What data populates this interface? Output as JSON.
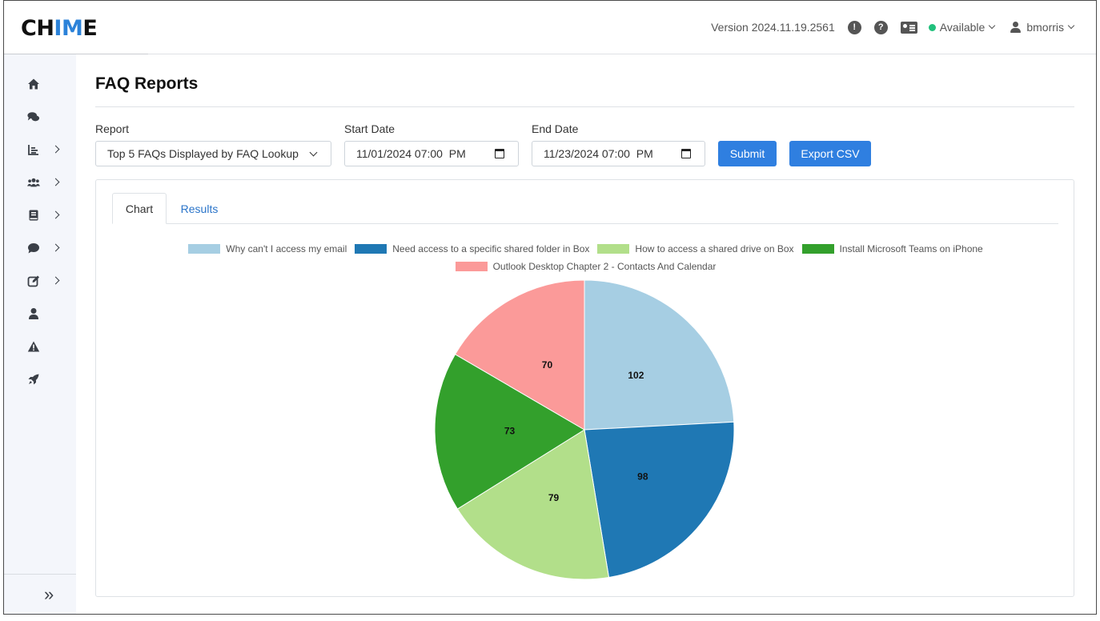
{
  "header": {
    "logo_prefix": "CH",
    "logo_accent": "IM",
    "logo_suffix": "E",
    "version": "Version 2024.11.19.2561",
    "status": "Available",
    "username": "bmorris"
  },
  "sidebar": {
    "items": [
      {
        "icon": "home-icon",
        "has_submenu": false
      },
      {
        "icon": "chat-icon",
        "has_submenu": false
      },
      {
        "icon": "reports-icon",
        "has_submenu": true
      },
      {
        "icon": "users-icon",
        "has_submenu": true
      },
      {
        "icon": "book-icon",
        "has_submenu": true
      },
      {
        "icon": "comment-icon",
        "has_submenu": true
      },
      {
        "icon": "edit-icon",
        "has_submenu": true
      },
      {
        "icon": "user-icon",
        "has_submenu": false
      },
      {
        "icon": "warning-icon",
        "has_submenu": false
      },
      {
        "icon": "rocket-icon",
        "has_submenu": false
      }
    ]
  },
  "page": {
    "title": "FAQ Reports",
    "report_label": "Report",
    "report_value": "Top 5 FAQs Displayed by FAQ Lookup",
    "start_label": "Start Date",
    "start_value": "11/01/2024 07:00  PM",
    "end_label": "End Date",
    "end_value": "11/23/2024 07:00  PM",
    "submit_label": "Submit",
    "export_label": "Export CSV",
    "tabs": [
      "Chart",
      "Results"
    ]
  },
  "colors": {
    "accent": "#2f7fe0",
    "link": "#2a74c9",
    "status_available": "#20c07c"
  },
  "chart_data": {
    "type": "pie",
    "title": "",
    "legend_position": "top",
    "categories": [
      "Why can't I access my email",
      "Need access to a specific shared folder in Box",
      "How to access a shared drive on Box",
      "Install Microsoft Teams on iPhone",
      "Outlook Desktop Chapter 2 - Contacts And Calendar"
    ],
    "values": [
      102,
      98,
      79,
      73,
      70
    ],
    "colors": [
      "#a6cee3",
      "#1f78b4",
      "#b2df8a",
      "#33a02c",
      "#fb9a99"
    ]
  }
}
